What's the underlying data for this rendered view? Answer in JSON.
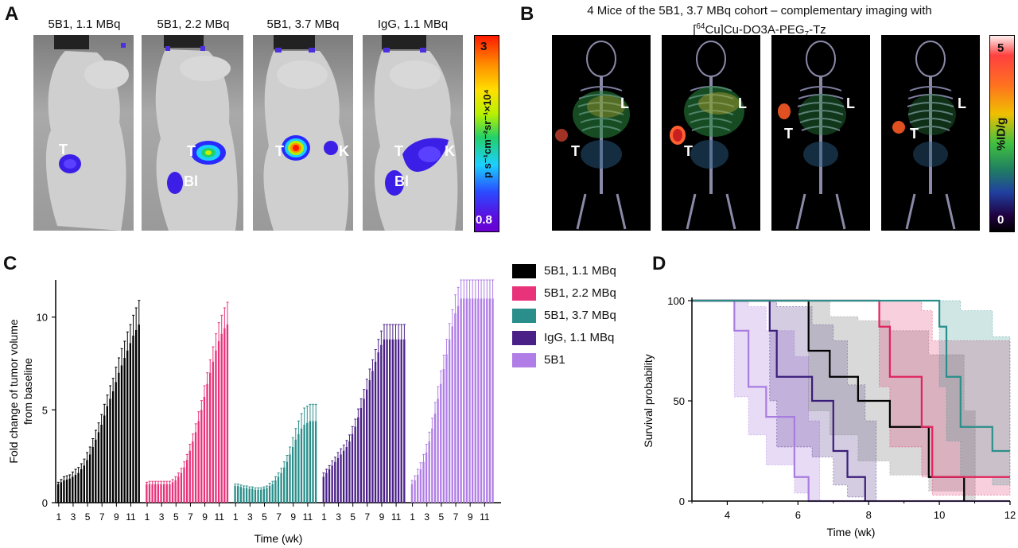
{
  "panelA": {
    "letter": "A",
    "titles": [
      "5B1, 1.1 MBq",
      "5B1, 2.2 MBq",
      "5B1, 3.7 MBq",
      "IgG, 1.1 MBq"
    ],
    "labels": {
      "m1": [
        "T"
      ],
      "m2": [
        "T",
        "Bl"
      ],
      "m3": [
        "T",
        "K"
      ],
      "m4": [
        "T",
        "K",
        "Bl"
      ]
    },
    "colorbar": {
      "max": "3",
      "min": "0.8",
      "unit": "p s⁻¹cm⁻²sr⁻¹×10⁴"
    }
  },
  "panelB": {
    "letter": "B",
    "title_line1": "4 Mice of the 5B1, 3.7 MBq cohort – complementary imaging with",
    "title_line2_sup": "64",
    "title_line2_rest": "Cu]Cu-DO3A-PEG",
    "title_line2_sub": "7",
    "title_line2_end": "-Tz",
    "title_line2_open": "[",
    "labels": [
      "T",
      "L"
    ],
    "colorbar": {
      "max": "5",
      "min": "0",
      "unit": "%ID/g"
    }
  },
  "panelC": {
    "letter": "C",
    "chart_data": {
      "type": "bar",
      "ylabel": "Fold change of tumor volume\nfrom baseline",
      "ylabel_line1": "Fold change of tumor volume",
      "ylabel_line2": "from baseline",
      "xlabel": "Time (wk)",
      "ylim": [
        0,
        12
      ],
      "yticks": [
        0,
        5,
        10
      ],
      "xtick_labels": [
        "1",
        "3",
        "5",
        "7",
        "9",
        "11"
      ],
      "series": [
        {
          "name": "5B1, 1.1 MBq",
          "color": "#000000",
          "values": [
            1.0,
            1.1,
            1.2,
            1.25,
            1.3,
            1.4,
            1.5,
            1.6,
            1.8,
            2.0,
            2.3,
            2.6,
            3.0,
            3.4,
            3.8,
            4.2,
            4.7,
            5.2,
            5.6,
            6.0,
            6.5,
            7.0,
            7.4,
            7.8,
            8.2,
            8.6,
            9.0,
            9.3,
            9.6
          ],
          "errors": [
            0.1,
            0.15,
            0.2,
            0.2,
            0.2,
            0.25,
            0.3,
            0.3,
            0.3,
            0.35,
            0.4,
            0.4,
            0.45,
            0.5,
            0.5,
            0.55,
            0.6,
            0.6,
            0.7,
            0.7,
            0.8,
            0.8,
            0.9,
            0.9,
            1.0,
            1.0,
            1.1,
            1.2,
            1.3
          ]
        },
        {
          "name": "5B1, 2.2 MBq",
          "color": "#e8337a",
          "values": [
            1.0,
            1.0,
            1.0,
            1.0,
            1.0,
            1.0,
            1.0,
            1.0,
            1.0,
            1.1,
            1.2,
            1.4,
            1.6,
            1.9,
            2.3,
            2.8,
            3.3,
            3.8,
            4.4,
            5.0,
            5.7,
            6.4,
            7.0,
            7.6,
            8.2,
            8.7,
            9.1,
            9.4,
            9.6
          ],
          "errors": [
            0.1,
            0.15,
            0.15,
            0.15,
            0.15,
            0.15,
            0.15,
            0.15,
            0.15,
            0.15,
            0.2,
            0.2,
            0.25,
            0.3,
            0.3,
            0.35,
            0.4,
            0.45,
            0.5,
            0.5,
            0.6,
            0.6,
            0.7,
            0.8,
            0.9,
            1.0,
            1.0,
            1.1,
            1.2
          ]
        },
        {
          "name": "5B1, 3.7 MBq",
          "color": "#2a8f8a",
          "values": [
            0.9,
            0.9,
            0.85,
            0.8,
            0.8,
            0.75,
            0.75,
            0.7,
            0.7,
            0.7,
            0.75,
            0.8,
            0.9,
            1.0,
            1.2,
            1.4,
            1.6,
            1.9,
            2.2,
            2.6,
            3.0,
            3.4,
            3.7,
            4.0,
            4.2,
            4.3,
            4.4,
            4.4,
            4.4
          ],
          "errors": [
            0.1,
            0.1,
            0.1,
            0.1,
            0.1,
            0.1,
            0.1,
            0.1,
            0.1,
            0.1,
            0.1,
            0.1,
            0.15,
            0.15,
            0.2,
            0.2,
            0.25,
            0.3,
            0.35,
            0.4,
            0.5,
            0.6,
            0.7,
            0.8,
            0.9,
            0.9,
            0.9,
            0.9,
            0.9
          ]
        },
        {
          "name": "IgG, 1.1 MBq",
          "color": "#4a2087",
          "values": [
            1.4,
            1.6,
            1.8,
            2.0,
            2.2,
            2.4,
            2.6,
            2.8,
            3.0,
            3.3,
            3.7,
            4.1,
            4.6,
            5.1,
            5.6,
            6.1,
            6.6,
            7.1,
            7.6,
            8.1,
            8.5,
            8.8,
            8.8,
            8.8,
            8.8,
            8.8,
            8.8,
            8.8,
            8.8
          ],
          "errors": [
            0.2,
            0.2,
            0.2,
            0.25,
            0.25,
            0.3,
            0.3,
            0.3,
            0.35,
            0.35,
            0.4,
            0.4,
            0.45,
            0.5,
            0.5,
            0.55,
            0.6,
            0.6,
            0.65,
            0.7,
            0.75,
            0.8,
            0.8,
            0.8,
            0.8,
            0.8,
            0.8,
            0.8,
            0.8
          ]
        },
        {
          "name": "5B1",
          "color": "#b07ee6",
          "values": [
            1.0,
            1.2,
            1.5,
            1.8,
            2.2,
            2.7,
            3.3,
            4.0,
            4.8,
            5.6,
            6.4,
            7.2,
            8.0,
            8.8,
            9.5,
            10.2,
            10.6,
            11.0,
            11.0,
            11.0,
            11.0,
            11.0,
            11.0,
            11.0,
            11.0,
            11.0,
            11.0,
            11.0,
            11.0
          ],
          "errors": [
            0.2,
            0.25,
            0.3,
            0.35,
            0.4,
            0.45,
            0.5,
            0.55,
            0.6,
            0.65,
            0.7,
            0.75,
            0.8,
            0.85,
            0.9,
            1.0,
            1.0,
            1.0,
            1.0,
            1.0,
            1.0,
            1.0,
            1.0,
            1.0,
            1.0,
            1.0,
            1.0,
            1.0,
            1.0
          ]
        }
      ]
    }
  },
  "panelD": {
    "letter": "D",
    "chart_data": {
      "type": "line",
      "xlabel": "Time (wk)",
      "ylabel": "Survival probability",
      "xlim": [
        3,
        12
      ],
      "ylim": [
        0,
        100
      ],
      "xticks": [
        4,
        6,
        8,
        10,
        12
      ],
      "yticks": [
        0,
        50,
        100
      ],
      "series": [
        {
          "name": "5B1",
          "color": "#a97de0",
          "steps": [
            [
              3,
              100
            ],
            [
              4.2,
              100
            ],
            [
              4.2,
              85
            ],
            [
              4.6,
              85
            ],
            [
              4.6,
              57
            ],
            [
              5.1,
              57
            ],
            [
              5.1,
              42
            ],
            [
              5.9,
              42
            ],
            [
              5.9,
              12
            ],
            [
              6.3,
              12
            ],
            [
              6.3,
              0
            ],
            [
              12,
              0
            ]
          ]
        },
        {
          "name": "IgG, 1.1 MBq",
          "color": "#3a1d7a",
          "steps": [
            [
              3,
              100
            ],
            [
              5.2,
              100
            ],
            [
              5.2,
              85
            ],
            [
              5.4,
              85
            ],
            [
              5.4,
              62
            ],
            [
              6.4,
              62
            ],
            [
              6.4,
              50
            ],
            [
              7.0,
              50
            ],
            [
              7.0,
              25
            ],
            [
              7.4,
              25
            ],
            [
              7.4,
              12
            ],
            [
              7.9,
              12
            ],
            [
              7.9,
              0
            ]
          ]
        },
        {
          "name": "5B1, 1.1 MBq",
          "color": "#000000",
          "steps": [
            [
              3,
              100
            ],
            [
              6.3,
              100
            ],
            [
              6.3,
              75
            ],
            [
              6.9,
              75
            ],
            [
              6.9,
              62
            ],
            [
              7.7,
              62
            ],
            [
              7.7,
              50
            ],
            [
              8.6,
              50
            ],
            [
              8.6,
              37
            ],
            [
              9.7,
              37
            ],
            [
              9.7,
              12
            ],
            [
              10.7,
              12
            ],
            [
              10.7,
              0
            ]
          ]
        },
        {
          "name": "5B1, 2.2 MBq",
          "color": "#e0245e",
          "steps": [
            [
              3,
              100
            ],
            [
              8.3,
              100
            ],
            [
              8.3,
              87
            ],
            [
              8.6,
              87
            ],
            [
              8.6,
              62
            ],
            [
              9.5,
              62
            ],
            [
              9.5,
              37
            ],
            [
              9.8,
              37
            ],
            [
              9.8,
              12
            ],
            [
              12,
              12
            ]
          ]
        },
        {
          "name": "5B1, 3.7 MBq",
          "color": "#2a8f8a",
          "steps": [
            [
              3,
              100
            ],
            [
              10.0,
              100
            ],
            [
              10.0,
              87
            ],
            [
              10.2,
              87
            ],
            [
              10.2,
              62
            ],
            [
              10.6,
              62
            ],
            [
              10.6,
              37
            ],
            [
              11.5,
              37
            ],
            [
              11.5,
              25
            ],
            [
              12,
              25
            ]
          ]
        }
      ],
      "bands": [
        {
          "color": "#a97de0",
          "opacity": 0.28,
          "upper": [
            [
              4.2,
              100
            ],
            [
              4.6,
              97
            ],
            [
              5.1,
              85
            ],
            [
              5.9,
              72
            ],
            [
              6.3,
              40
            ]
          ],
          "lower": [
            [
              4.2,
              52
            ],
            [
              4.6,
              33
            ],
            [
              5.1,
              18
            ],
            [
              5.9,
              4
            ],
            [
              6.3,
              0
            ]
          ]
        },
        {
          "color": "#3a1d7a",
          "opacity": 0.22,
          "upper": [
            [
              5.2,
              100
            ],
            [
              5.4,
              97
            ],
            [
              6.4,
              88
            ],
            [
              7.0,
              80
            ],
            [
              7.4,
              58
            ],
            [
              7.9,
              40
            ]
          ],
          "lower": [
            [
              5.2,
              50
            ],
            [
              5.4,
              27
            ],
            [
              6.4,
              22
            ],
            [
              7.0,
              8
            ],
            [
              7.4,
              2
            ],
            [
              7.9,
              0
            ]
          ]
        },
        {
          "color": "#808080",
          "opacity": 0.3,
          "upper": [
            [
              6.3,
              100
            ],
            [
              6.9,
              92
            ],
            [
              7.7,
              90
            ],
            [
              8.6,
              85
            ],
            [
              9.7,
              73
            ],
            [
              10.7,
              45
            ]
          ],
          "lower": [
            [
              6.3,
              45
            ],
            [
              6.9,
              33
            ],
            [
              7.7,
              20
            ],
            [
              8.6,
              13
            ],
            [
              9.7,
              5
            ],
            [
              10.7,
              0
            ]
          ]
        },
        {
          "color": "#e0245e",
          "opacity": 0.22,
          "upper": [
            [
              8.3,
              100
            ],
            [
              8.6,
              100
            ],
            [
              9.5,
              95
            ],
            [
              9.8,
              80
            ],
            [
              12,
              45
            ]
          ],
          "lower": [
            [
              8.3,
              57
            ],
            [
              8.6,
              27
            ],
            [
              9.5,
              12
            ],
            [
              9.8,
              3
            ],
            [
              12,
              3
            ]
          ]
        },
        {
          "color": "#2a8f8a",
          "opacity": 0.22,
          "upper": [
            [
              10.0,
              100
            ],
            [
              10.2,
              100
            ],
            [
              10.6,
              95
            ],
            [
              11.5,
              82
            ],
            [
              12,
              55
            ]
          ],
          "lower": [
            [
              10.0,
              57
            ],
            [
              10.2,
              30
            ],
            [
              10.6,
              12
            ],
            [
              11.5,
              8
            ],
            [
              12,
              8
            ]
          ]
        }
      ]
    }
  }
}
